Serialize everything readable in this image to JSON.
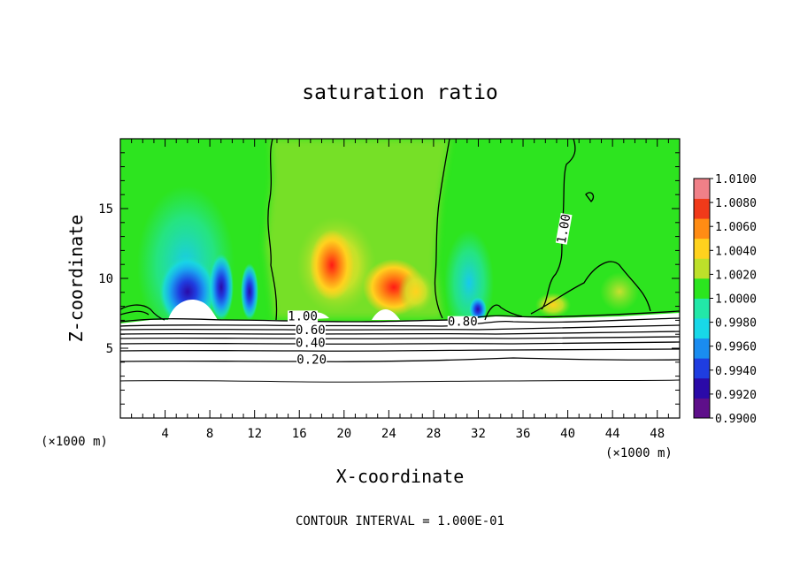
{
  "chart_data": {
    "type": "heatmap",
    "title": "saturation ratio",
    "xlabel": "X-coordinate",
    "ylabel": "Z-coordinate",
    "x_unit_left": "(×1000 m)",
    "x_unit_right": "(×1000 m)",
    "footer": "CONTOUR INTERVAL = 1.000E-01",
    "xlim": [
      0,
      50
    ],
    "ylim": [
      0,
      20
    ],
    "x_ticks": [
      4,
      8,
      12,
      16,
      20,
      24,
      28,
      32,
      36,
      40,
      44,
      48
    ],
    "y_ticks": [
      5,
      10,
      15
    ],
    "colorbar": {
      "min": 0.99,
      "max": 1.01,
      "labels": [
        "1.0100",
        "1.0080",
        "1.0060",
        "1.0040",
        "1.0020",
        "1.0000",
        "0.9980",
        "0.9960",
        "0.9940",
        "0.9920",
        "0.9900"
      ],
      "colors": [
        "#5e0f8a",
        "#2a0aa8",
        "#1f3de0",
        "#1a8cf0",
        "#18d8e8",
        "#22e8a8",
        "#2be51f",
        "#bde02a",
        "#ffd21e",
        "#ff8c14",
        "#f03a1a",
        "#f08088"
      ]
    },
    "contour_labels": [
      {
        "text": "1.00",
        "x": 16.3,
        "z": 7.0
      },
      {
        "text": "0.80",
        "x": 30.6,
        "z": 6.6
      },
      {
        "text": "0.60",
        "x": 17.0,
        "z": 6.0
      },
      {
        "text": "0.40",
        "x": 17.0,
        "z": 5.1
      },
      {
        "text": "0.20",
        "x": 17.1,
        "z": 3.9
      },
      {
        "text": "1.00",
        "x": 40.0,
        "z": 13.5
      }
    ]
  }
}
